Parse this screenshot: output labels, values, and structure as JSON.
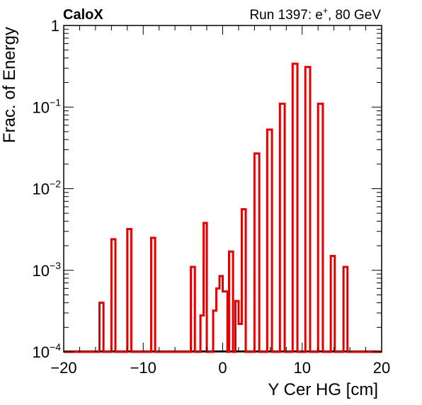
{
  "header": {
    "experiment": "CaloX",
    "run_prefix": "Run 1397: e",
    "run_sup": "+",
    "run_suffix": ", 80 GeV"
  },
  "chart_data": {
    "type": "histogram",
    "xlabel": "Y Cer HG [cm]",
    "ylabel": "Frac. of Energy",
    "xlim": [
      -20,
      20
    ],
    "ylim": [
      0.0001,
      1
    ],
    "yscale": "log",
    "grid": false,
    "x_ticks": [
      "−20",
      "−10",
      "0",
      "10",
      "20"
    ],
    "y_ticks": [
      {
        "base": "1",
        "exp": ""
      },
      {
        "base": "10",
        "exp": "−1"
      },
      {
        "base": "10",
        "exp": "−2"
      },
      {
        "base": "10",
        "exp": "−3"
      },
      {
        "base": "10",
        "exp": "−4"
      }
    ],
    "line_color": "#e00000",
    "baseline_color": "#000000",
    "bins": [
      {
        "x0": -15.5,
        "x1": -15.0,
        "value": 0.0004
      },
      {
        "x0": -14.0,
        "x1": -13.5,
        "value": 0.0024
      },
      {
        "x0": -12.0,
        "x1": -11.5,
        "value": 0.0032
      },
      {
        "x0": -9.0,
        "x1": -8.5,
        "value": 0.0025
      },
      {
        "x0": -4.0,
        "x1": -3.5,
        "value": 0.0011
      },
      {
        "x0": -2.8,
        "x1": -2.4,
        "value": 0.00028
      },
      {
        "x0": -2.4,
        "x1": -2.0,
        "value": 0.0038
      },
      {
        "x0": -1.2,
        "x1": -0.8,
        "value": 0.00032
      },
      {
        "x0": -0.8,
        "x1": -0.4,
        "value": 0.0006
      },
      {
        "x0": -0.4,
        "x1": 0.0,
        "value": 0.00085
      },
      {
        "x0": 0.0,
        "x1": 0.6,
        "value": 0.00055
      },
      {
        "x0": 0.8,
        "x1": 1.3,
        "value": 0.0017
      },
      {
        "x0": 1.6,
        "x1": 2.0,
        "value": 0.00042
      },
      {
        "x0": 2.0,
        "x1": 2.4,
        "value": 0.00022
      },
      {
        "x0": 2.4,
        "x1": 2.9,
        "value": 0.0056
      },
      {
        "x0": 4.0,
        "x1": 4.6,
        "value": 0.027
      },
      {
        "x0": 5.6,
        "x1": 6.2,
        "value": 0.053
      },
      {
        "x0": 7.2,
        "x1": 7.8,
        "value": 0.11
      },
      {
        "x0": 8.8,
        "x1": 9.4,
        "value": 0.34
      },
      {
        "x0": 10.4,
        "x1": 11.0,
        "value": 0.31
      },
      {
        "x0": 12.0,
        "x1": 12.6,
        "value": 0.11
      },
      {
        "x0": 13.6,
        "x1": 14.1,
        "value": 0.0015
      },
      {
        "x0": 15.2,
        "x1": 15.7,
        "value": 0.0011
      }
    ]
  }
}
